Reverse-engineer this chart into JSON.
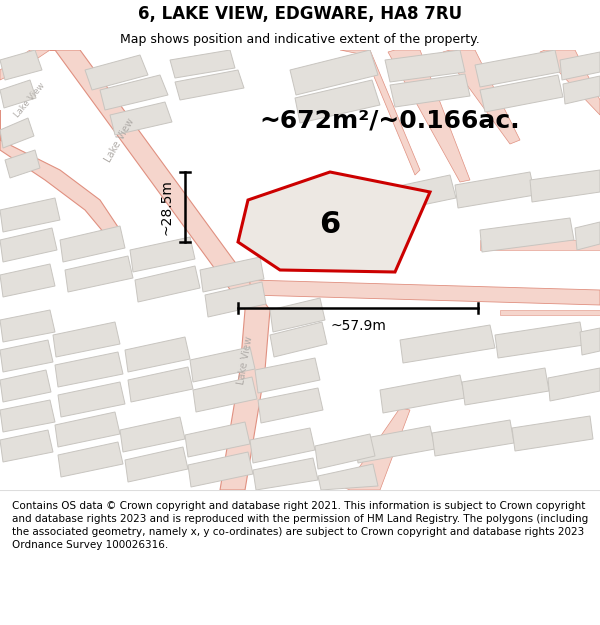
{
  "title": "6, LAKE VIEW, EDGWARE, HA8 7RU",
  "subtitle": "Map shows position and indicative extent of the property.",
  "area_label": "~672m²/~0.166ac.",
  "number_label": "6",
  "dim_vertical": "~28.5m",
  "dim_horizontal": "~57.9m",
  "footer": "Contains OS data © Crown copyright and database right 2021. This information is subject to Crown copyright and database rights 2023 and is reproduced with the permission of HM Land Registry. The polygons (including the associated geometry, namely x, y co-ordinates) are subject to Crown copyright and database rights 2023 Ordnance Survey 100026316.",
  "bg_color": "#f2f0ed",
  "map_bg": "#f2f0ed",
  "building_fill": "#e3e0db",
  "building_edge": "#c8c5c0",
  "road_fill": "#f5d5cc",
  "road_edge": "#e09080",
  "property_fill": "#ede8e3",
  "property_edge": "#cc0000",
  "street_label_color": "#b0aca8",
  "figsize": [
    6.0,
    6.25
  ],
  "dpi": 100,
  "title_fontsize": 12,
  "subtitle_fontsize": 9,
  "footer_fontsize": 7.5,
  "area_fontsize": 18,
  "number_fontsize": 22,
  "dim_fontsize": 10
}
